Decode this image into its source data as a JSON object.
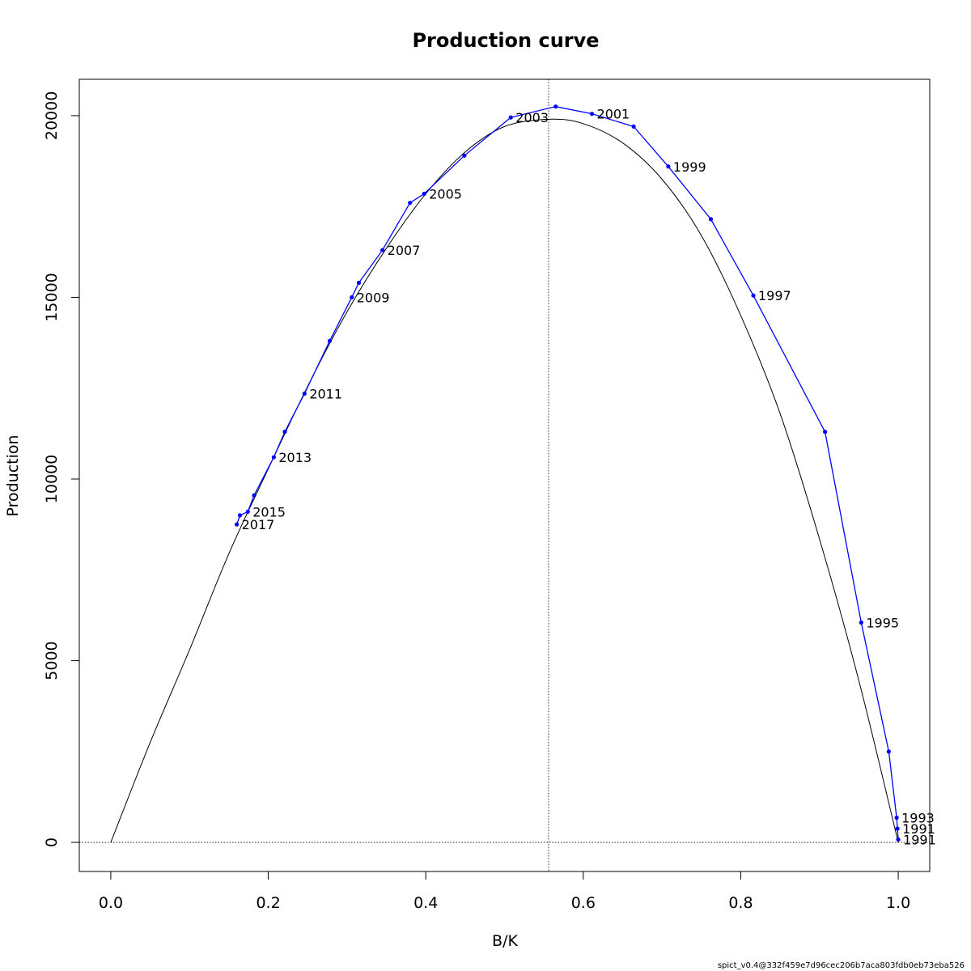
{
  "chart_data": {
    "type": "line",
    "title": "Production curve",
    "xlabel": "B/K",
    "ylabel": "Production",
    "xlim": [
      -0.04,
      1.04
    ],
    "ylim": [
      -800,
      21000
    ],
    "x_ticks": [
      0.0,
      0.2,
      0.4,
      0.6,
      0.8,
      1.0
    ],
    "x_tick_labels": [
      "0.0",
      "0.2",
      "0.4",
      "0.6",
      "0.8",
      "1.0"
    ],
    "y_ticks": [
      0,
      5000,
      10000,
      15000,
      20000
    ],
    "y_tick_labels": [
      "0",
      "5000",
      "10000",
      "15000",
      "20000"
    ],
    "grid": false,
    "reference_lines": {
      "vertical_x": 0.556,
      "horizontal_y": 0
    },
    "theoretical_curve": {
      "color": "#000000",
      "x": [
        0.0,
        0.05,
        0.1,
        0.15,
        0.2,
        0.25,
        0.3,
        0.35,
        0.4,
        0.45,
        0.5,
        0.556,
        0.6,
        0.65,
        0.7,
        0.75,
        0.8,
        0.85,
        0.9,
        0.95,
        1.0
      ],
      "y": [
        0,
        2750,
        5300,
        7950,
        10280,
        12550,
        14600,
        16350,
        17850,
        19000,
        19700,
        19900,
        19780,
        19250,
        18250,
        16700,
        14500,
        11800,
        8350,
        4450,
        0
      ]
    },
    "observed_series": {
      "color": "#0000ff",
      "points": [
        {
          "x": 1.0,
          "y": 80,
          "label": "1991"
        },
        {
          "x": 0.999,
          "y": 380,
          "label": "1991"
        },
        {
          "x": 0.998,
          "y": 680,
          "label": "1993"
        },
        {
          "x": 0.988,
          "y": 2500,
          "label": ""
        },
        {
          "x": 0.953,
          "y": 6050,
          "label": "1995"
        },
        {
          "x": 0.907,
          "y": 11300,
          "label": ""
        },
        {
          "x": 0.816,
          "y": 15050,
          "label": "1997"
        },
        {
          "x": 0.762,
          "y": 17150,
          "label": ""
        },
        {
          "x": 0.708,
          "y": 18600,
          "label": "1999"
        },
        {
          "x": 0.664,
          "y": 19700,
          "label": ""
        },
        {
          "x": 0.611,
          "y": 20050,
          "label": "2001"
        },
        {
          "x": 0.565,
          "y": 20250,
          "label": ""
        },
        {
          "x": 0.508,
          "y": 19950,
          "label": "2003"
        },
        {
          "x": 0.449,
          "y": 18900,
          "label": ""
        },
        {
          "x": 0.398,
          "y": 17850,
          "label": "2005"
        },
        {
          "x": 0.38,
          "y": 17600,
          "label": ""
        },
        {
          "x": 0.345,
          "y": 16300,
          "label": "2007"
        },
        {
          "x": 0.315,
          "y": 15400,
          "label": ""
        },
        {
          "x": 0.306,
          "y": 15000,
          "label": "2009"
        },
        {
          "x": 0.278,
          "y": 13800,
          "label": ""
        },
        {
          "x": 0.246,
          "y": 12350,
          "label": "2011"
        },
        {
          "x": 0.221,
          "y": 11300,
          "label": ""
        },
        {
          "x": 0.207,
          "y": 10600,
          "label": "2013"
        },
        {
          "x": 0.182,
          "y": 9550,
          "label": ""
        },
        {
          "x": 0.174,
          "y": 9100,
          "label": "2015"
        },
        {
          "x": 0.164,
          "y": 9000,
          "label": ""
        },
        {
          "x": 0.16,
          "y": 8750,
          "label": "2017"
        }
      ]
    }
  },
  "footer_text": "spict_v0.4@332f459e7d96cec206b7aca803fdb0eb73eba526"
}
